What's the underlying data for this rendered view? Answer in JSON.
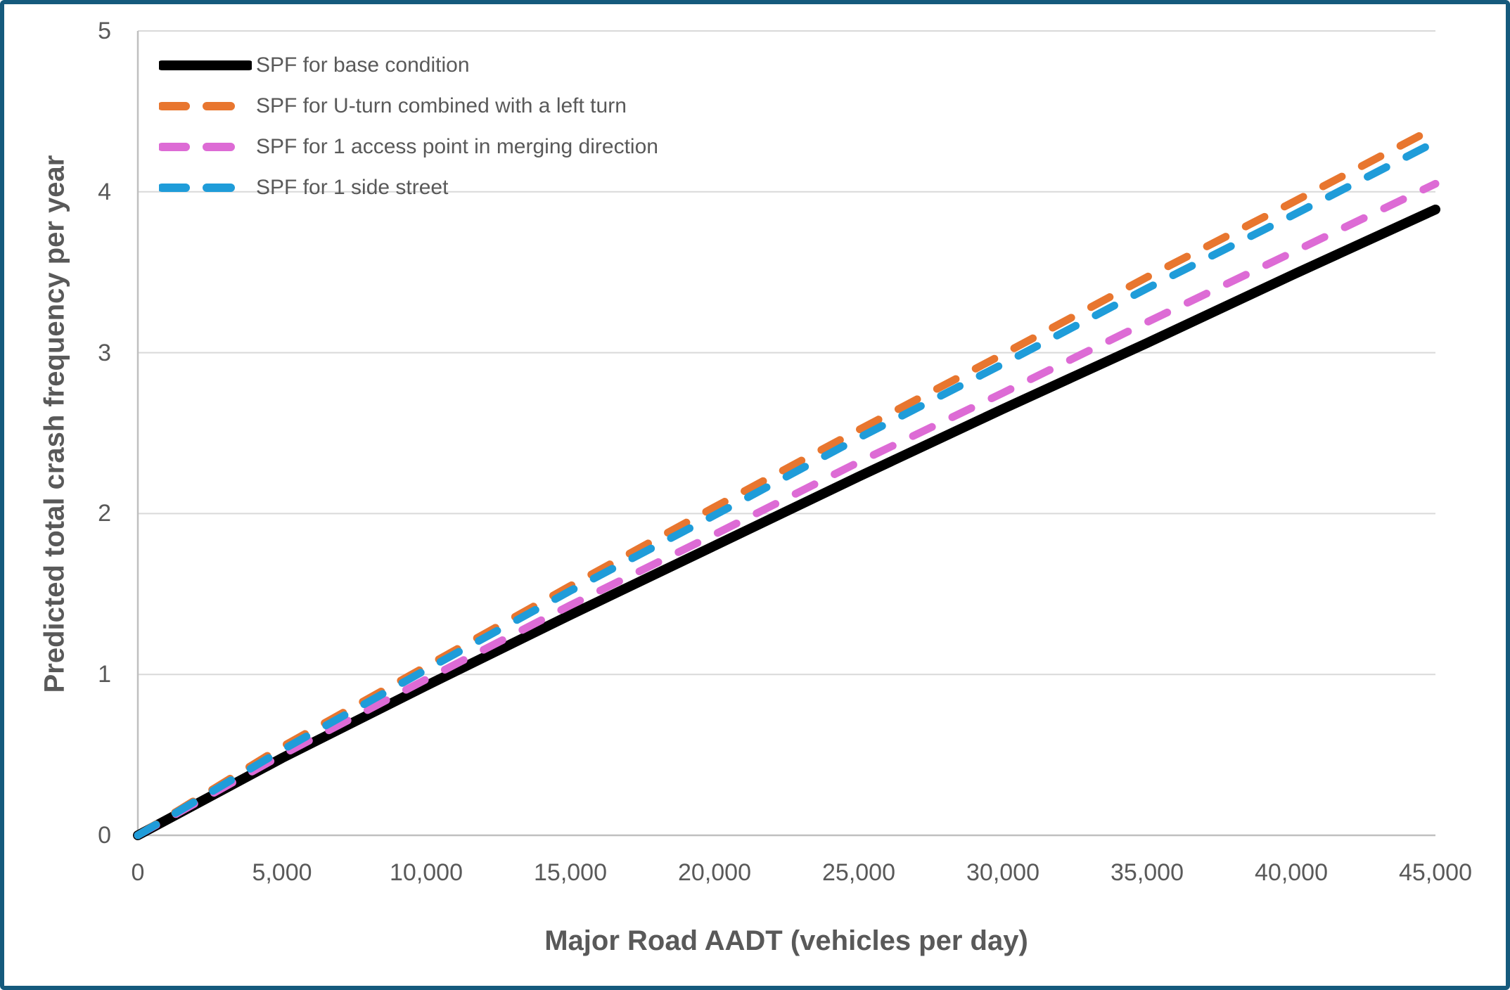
{
  "chart_data": {
    "type": "line",
    "title": "",
    "xlabel": "Major Road AADT (vehicles per day)",
    "ylabel": "Predicted total crash frequency per year",
    "xlim": [
      0,
      45000
    ],
    "ylim": [
      0,
      5
    ],
    "grid": "horizontal-only",
    "legend_position": "top-left-inside",
    "x_ticks": {
      "values": [
        0,
        5000,
        10000,
        15000,
        20000,
        25000,
        30000,
        35000,
        40000,
        45000
      ],
      "labels": [
        "0",
        "5,000",
        "10,000",
        "15,000",
        "20,000",
        "25,000",
        "30,000",
        "35,000",
        "40,000",
        "45,000"
      ]
    },
    "y_ticks": {
      "values": [
        0,
        1,
        2,
        3,
        4,
        5
      ],
      "labels": [
        "0",
        "1",
        "2",
        "3",
        "4",
        "5"
      ]
    },
    "x": [
      0,
      5000,
      10000,
      15000,
      20000,
      25000,
      30000,
      35000,
      40000,
      45000
    ],
    "series": [
      {
        "id": "base-condition",
        "name": "SPF for base condition",
        "color": "#000000",
        "line_style": "solid",
        "values": [
          0,
          0.48,
          0.93,
          1.37,
          1.8,
          2.23,
          2.65,
          3.06,
          3.48,
          3.89
        ]
      },
      {
        "id": "u-turn-left-turn",
        "name": "SPF for U-turn combined with a left turn",
        "color": "#E8762F",
        "line_style": "dashed",
        "values": [
          0,
          0.55,
          1.05,
          1.55,
          2.04,
          2.52,
          2.99,
          3.47,
          3.93,
          4.4
        ]
      },
      {
        "id": "access-point-merging",
        "name": "SPF for 1 access point in merging direction",
        "color": "#DD6BD5",
        "line_style": "dashed",
        "values": [
          0,
          0.5,
          0.97,
          1.43,
          1.87,
          2.32,
          2.75,
          3.19,
          3.62,
          4.05
        ]
      },
      {
        "id": "side-street",
        "name": "SPF for 1 side street",
        "color": "#1F9CD9",
        "line_style": "dashed",
        "values": [
          0,
          0.53,
          1.03,
          1.52,
          1.99,
          2.47,
          2.93,
          3.4,
          3.85,
          4.31
        ]
      }
    ],
    "colors": {
      "frame": "#155A7D",
      "gridline": "#D9D9D9",
      "axis_line": "#BFBFBF",
      "text": "#595959"
    }
  }
}
